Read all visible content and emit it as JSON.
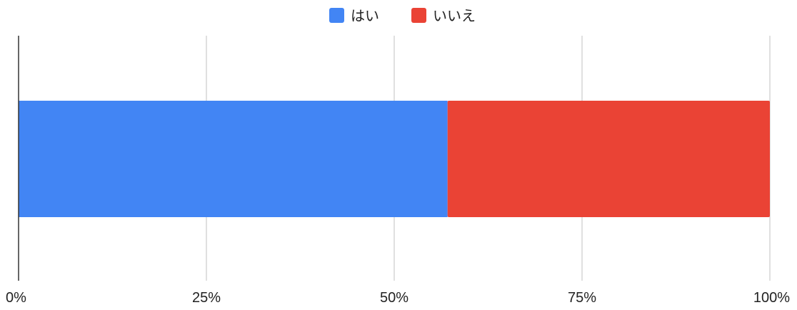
{
  "chart_data": {
    "type": "bar",
    "orientation": "horizontal",
    "stacked": "percent",
    "categories": [
      ""
    ],
    "series": [
      {
        "name": "はい",
        "values": [
          57.1
        ],
        "color": "#4285F4"
      },
      {
        "name": "いいえ",
        "values": [
          42.9
        ],
        "color": "#EA4335"
      }
    ],
    "xlim": [
      0,
      100
    ],
    "x_ticks": [
      "0%",
      "25%",
      "50%",
      "75%",
      "100%"
    ],
    "grid": true,
    "legend_position": "top-center",
    "title": "",
    "xlabel": "",
    "ylabel": ""
  }
}
